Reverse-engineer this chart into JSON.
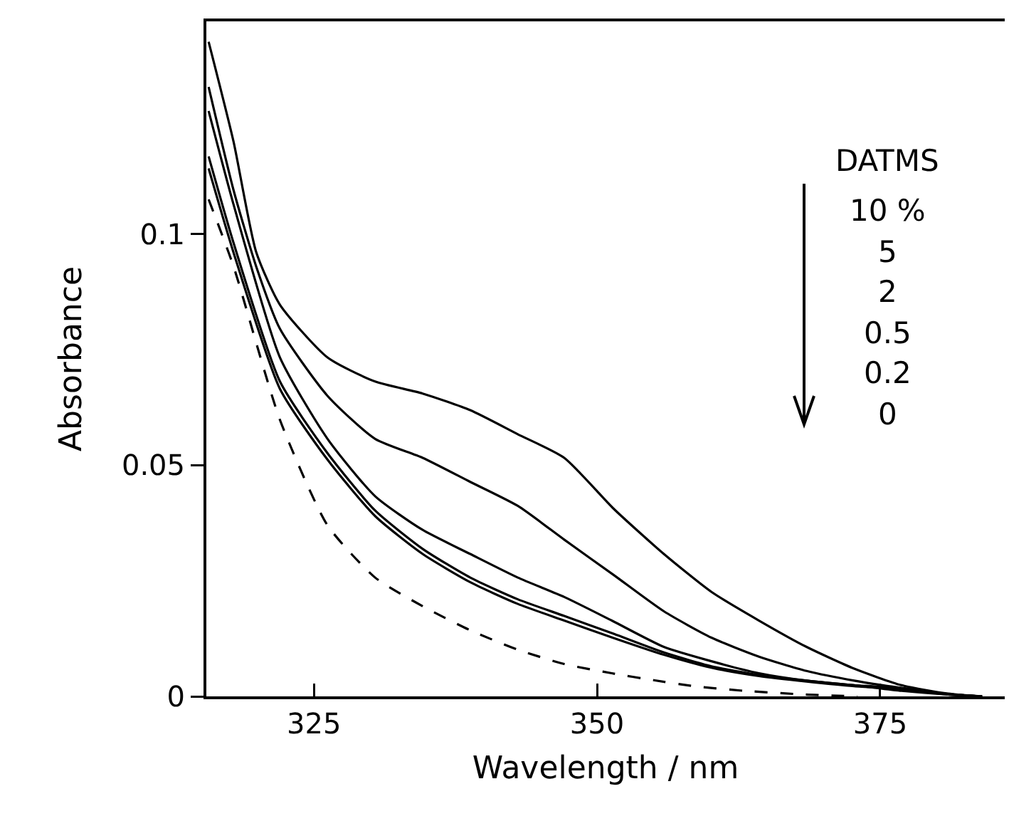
{
  "chart_data": {
    "type": "line",
    "xlabel": "Wavelength / nm",
    "ylabel": "Absorbance",
    "annotations": [
      "DATMS",
      "10 %",
      "5",
      "2",
      "0.5",
      "0.2",
      "0"
    ],
    "xlim": [
      315.5,
      386
    ],
    "xticks": [
      325,
      350,
      375
    ],
    "ylim": [
      0,
      0.146
    ],
    "yticks": [
      0,
      0.05,
      0.1
    ],
    "grid": false,
    "marker": "none",
    "series": [
      {
        "color": "#000000",
        "line_style": "solid",
        "x": [
          315.7,
          317.9,
          319.9,
          322.0,
          326.2,
          330.4,
          334.6,
          338.8,
          343.0,
          347.1,
          351.5,
          355.9,
          360.1,
          364.3,
          368.5,
          372.7,
          376.9,
          381,
          384
        ],
        "values": [
          0.1416,
          0.12,
          0.0961,
          0.0847,
          0.0733,
          0.0681,
          0.0655,
          0.0619,
          0.0567,
          0.0516,
          0.0405,
          0.0308,
          0.0226,
          0.0164,
          0.0107,
          0.006,
          0.0024,
          0.0006,
          0
        ]
      },
      {
        "color": "#000000",
        "line_style": "solid",
        "x": [
          315.7,
          317.9,
          319.9,
          322.0,
          326.2,
          330.4,
          334.6,
          338.8,
          343.0,
          347.1,
          351.5,
          355.9,
          360.1,
          364.3,
          368.5,
          372.7,
          376.9,
          381,
          384
        ],
        "values": [
          0.1318,
          0.1095,
          0.093,
          0.0795,
          0.065,
          0.0557,
          0.0516,
          0.0464,
          0.0412,
          0.0339,
          0.0262,
          0.0184,
          0.0127,
          0.0086,
          0.0055,
          0.0034,
          0.0018,
          0.0005,
          0
        ]
      },
      {
        "color": "#000000",
        "line_style": "solid",
        "x": [
          315.7,
          317.9,
          322.0,
          326.2,
          330.4,
          334.6,
          338.8,
          343.0,
          347.1,
          351.3,
          355.9,
          360.1,
          364.3,
          368.5,
          372.7,
          376.9,
          381,
          384
        ],
        "values": [
          0.1266,
          0.1064,
          0.0733,
          0.0557,
          0.0433,
          0.036,
          0.0308,
          0.0257,
          0.0215,
          0.0164,
          0.0107,
          0.0076,
          0.005,
          0.0034,
          0.0024,
          0.0012,
          0.0004,
          0
        ]
      },
      {
        "color": "#000000",
        "line_style": "solid",
        "x": [
          315.7,
          317.9,
          322.0,
          326.2,
          330.4,
          334.6,
          338.8,
          343.0,
          347.1,
          351.5,
          355.9,
          360.1,
          364.3,
          368.5,
          372.7,
          376.9,
          381,
          384
        ],
        "values": [
          0.1168,
          0.0981,
          0.0681,
          0.0526,
          0.0402,
          0.0319,
          0.0257,
          0.021,
          0.0174,
          0.0135,
          0.0095,
          0.0065,
          0.0046,
          0.0034,
          0.0024,
          0.0018,
          0.0005,
          0
        ]
      },
      {
        "color": "#000000",
        "line_style": "solid",
        "x": [
          315.7,
          317.9,
          322.0,
          326.2,
          330.4,
          334.6,
          338.8,
          343.0,
          347.1,
          351.5,
          355.9,
          360.1,
          364.3,
          368.5,
          372.7,
          376.9,
          381,
          384
        ],
        "values": [
          0.1142,
          0.096,
          0.0665,
          0.0512,
          0.039,
          0.0308,
          0.0247,
          0.02,
          0.0164,
          0.0126,
          0.009,
          0.0062,
          0.0044,
          0.0032,
          0.0022,
          0.0016,
          0.0004,
          0
        ]
      },
      {
        "color": "#000000",
        "line_style": "dashed",
        "x": [
          315.7,
          317.9,
          322.0,
          326.2,
          330.4,
          334.6,
          338.8,
          343.0,
          347.1,
          351.3,
          355.0,
          358.6,
          363,
          368.4,
          373
        ],
        "values": [
          0.1075,
          0.093,
          0.0598,
          0.037,
          0.0257,
          0.0195,
          0.0143,
          0.0101,
          0.007,
          0.005,
          0.0035,
          0.0022,
          0.0012,
          0.0004,
          0
        ]
      }
    ]
  }
}
